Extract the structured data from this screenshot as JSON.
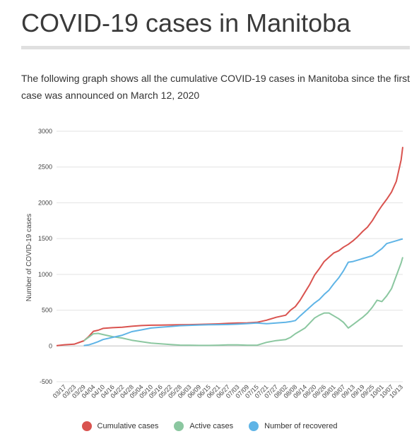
{
  "page": {
    "title": "COVID-19 cases in Manitoba",
    "subtitle": "The following graph shows all the cumulative COVID-19 cases in Manitoba since the first case was announced on March 12, 2020"
  },
  "chart_data": {
    "type": "line",
    "ylabel": "Number of COVID-19 cases",
    "ylim": [
      -500,
      3000
    ],
    "yticks": [
      3000,
      2500,
      2000,
      1500,
      1000,
      500,
      0,
      -500
    ],
    "grid": true,
    "legend_position": "bottom",
    "x_ticks": [
      "03/17",
      "03/23",
      "03/29",
      "04/04",
      "04/10",
      "04/16",
      "04/22",
      "04/28",
      "05/04",
      "05/10",
      "05/16",
      "05/22",
      "05/28",
      "06/03",
      "06/09",
      "06/15",
      "06/21",
      "06/27",
      "07/03",
      "07/09",
      "07/15",
      "07/21",
      "07/27",
      "08/02",
      "08/08",
      "08/14",
      "08/20",
      "08/26",
      "09/01",
      "09/07",
      "09/13",
      "09/19",
      "09/25",
      "10/01",
      "10/07",
      "10/13"
    ],
    "x": [
      "03/12",
      "03/17",
      "03/23",
      "03/29",
      "04/01",
      "04/04",
      "04/07",
      "04/10",
      "04/16",
      "04/22",
      "04/28",
      "05/04",
      "05/10",
      "05/16",
      "05/22",
      "05/28",
      "06/03",
      "06/09",
      "06/15",
      "06/21",
      "06/27",
      "07/03",
      "07/09",
      "07/15",
      "07/21",
      "07/27",
      "08/02",
      "08/05",
      "08/08",
      "08/11",
      "08/14",
      "08/17",
      "08/20",
      "08/23",
      "08/26",
      "08/29",
      "09/01",
      "09/04",
      "09/07",
      "09/10",
      "09/13",
      "09/16",
      "09/19",
      "09/22",
      "09/25",
      "09/28",
      "10/01",
      "10/04",
      "10/07",
      "10/10",
      "10/13",
      "10/14"
    ],
    "series": [
      {
        "name": "Cumulative cases",
        "color": "#d9534f",
        "values": [
          4,
          17,
          25,
          72,
          130,
          205,
          220,
          245,
          255,
          262,
          275,
          285,
          290,
          292,
          294,
          296,
          298,
          302,
          305,
          308,
          315,
          320,
          322,
          330,
          360,
          400,
          430,
          500,
          550,
          640,
          750,
          860,
          990,
          1080,
          1180,
          1240,
          1300,
          1330,
          1380,
          1420,
          1470,
          1530,
          1600,
          1660,
          1750,
          1860,
          1960,
          2050,
          2150,
          2300,
          2600,
          2780
        ]
      },
      {
        "name": "Active cases",
        "color": "#8bc7a0",
        "values": [
          null,
          null,
          null,
          72,
          120,
          170,
          175,
          160,
          130,
          110,
          80,
          60,
          40,
          30,
          20,
          12,
          10,
          8,
          8,
          10,
          15,
          15,
          10,
          10,
          50,
          75,
          90,
          120,
          170,
          210,
          250,
          320,
          390,
          430,
          460,
          460,
          420,
          380,
          330,
          250,
          300,
          350,
          400,
          460,
          540,
          640,
          620,
          700,
          800,
          980,
          1160,
          1240
        ]
      },
      {
        "name": "Number of recovered",
        "color": "#5fb4e6",
        "values": [
          null,
          null,
          null,
          5,
          15,
          35,
          60,
          90,
          120,
          150,
          200,
          225,
          250,
          262,
          272,
          283,
          288,
          293,
          296,
          298,
          300,
          305,
          312,
          320,
          310,
          320,
          330,
          340,
          355,
          420,
          480,
          540,
          600,
          650,
          720,
          780,
          870,
          950,
          1050,
          1170,
          1180,
          1200,
          1220,
          1240,
          1260,
          1310,
          1360,
          1430,
          1450,
          1470,
          1490,
          1495
        ]
      }
    ]
  }
}
